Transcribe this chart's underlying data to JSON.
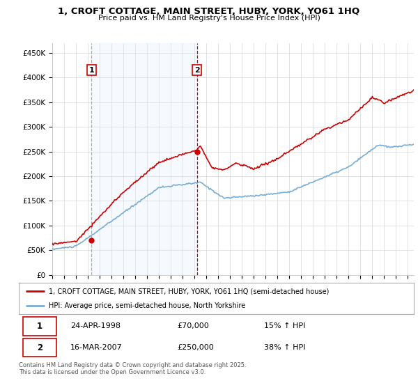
{
  "title": "1, CROFT COTTAGE, MAIN STREET, HUBY, YORK, YO61 1HQ",
  "subtitle": "Price paid vs. HM Land Registry's House Price Index (HPI)",
  "ylabel_ticks": [
    "£0",
    "£50K",
    "£100K",
    "£150K",
    "£200K",
    "£250K",
    "£300K",
    "£350K",
    "£400K",
    "£450K"
  ],
  "ytick_values": [
    0,
    50000,
    100000,
    150000,
    200000,
    250000,
    300000,
    350000,
    400000,
    450000
  ],
  "ylim": [
    0,
    470000
  ],
  "xlim_start": 1995.0,
  "xlim_end": 2025.5,
  "property_color": "#cc0000",
  "hpi_color": "#7aadd4",
  "shade_color": "#ddeeff",
  "vline1_color": "#aaaaaa",
  "vline2_color": "#cc0000",
  "sale1_year": 1998.31,
  "sale1_price": 70000,
  "sale1_label": "1",
  "sale2_year": 2007.21,
  "sale2_price": 250000,
  "sale2_label": "2",
  "legend_property": "1, CROFT COTTAGE, MAIN STREET, HUBY, YORK, YO61 1HQ (semi-detached house)",
  "legend_hpi": "HPI: Average price, semi-detached house, North Yorkshire",
  "table_row1": [
    "1",
    "24-APR-1998",
    "£70,000",
    "15% ↑ HPI"
  ],
  "table_row2": [
    "2",
    "16-MAR-2007",
    "£250,000",
    "38% ↑ HPI"
  ],
  "footer": "Contains HM Land Registry data © Crown copyright and database right 2025.\nThis data is licensed under the Open Government Licence v3.0.",
  "background_color": "#ffffff",
  "grid_color": "#cccccc"
}
